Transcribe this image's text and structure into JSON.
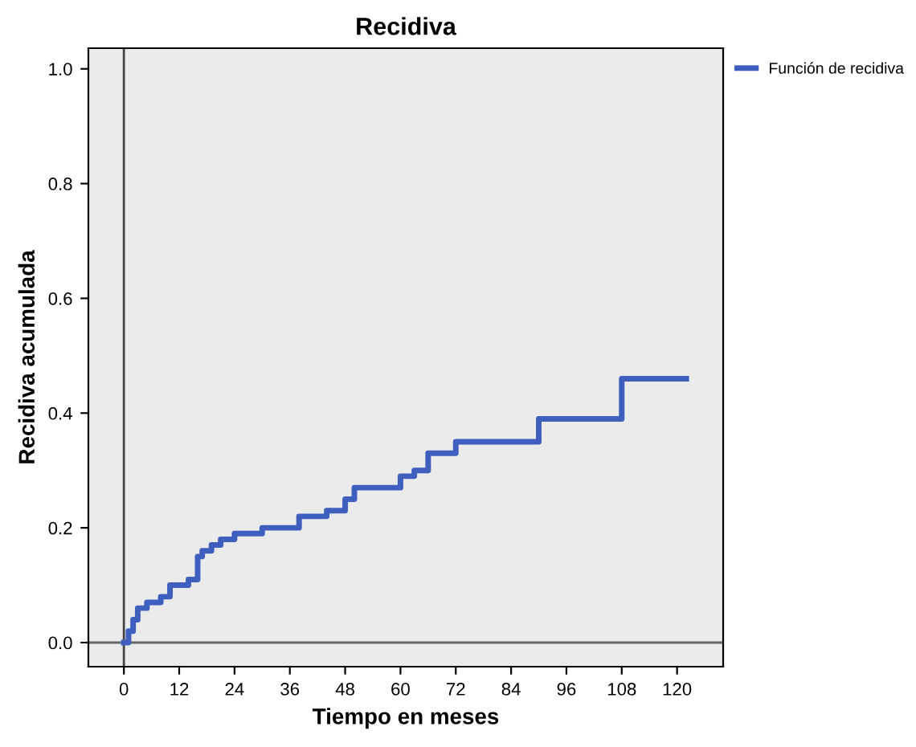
{
  "chart_data": {
    "type": "step",
    "title": "Recidiva",
    "xlabel": "Tiempo en meses",
    "ylabel": "Recidiva acumulada",
    "series": [
      {
        "name": "Función de recidiva",
        "color": "#3f5fbf",
        "x": [
          0,
          1,
          2,
          3,
          5,
          8,
          10,
          14,
          16,
          17,
          19,
          21,
          24,
          30,
          38,
          44,
          48,
          50,
          60,
          63,
          66,
          72,
          90,
          108,
          122
        ],
        "values": [
          0,
          0.02,
          0.04,
          0.06,
          0.07,
          0.08,
          0.1,
          0.11,
          0.15,
          0.16,
          0.17,
          0.18,
          0.19,
          0.2,
          0.22,
          0.23,
          0.25,
          0.27,
          0.29,
          0.3,
          0.33,
          0.35,
          0.39,
          0.46,
          0.46
        ]
      }
    ],
    "xlim": [
      -7.7,
      130
    ],
    "ylim": [
      -0.042,
      1.036
    ],
    "xticks": [
      0,
      12,
      24,
      36,
      48,
      60,
      72,
      84,
      96,
      108,
      120
    ],
    "yticks": [
      {
        "value": 0,
        "label": "0.0"
      },
      {
        "value": 0.2,
        "label": "0.2"
      },
      {
        "value": 0.4,
        "label": "0.4"
      },
      {
        "value": 0.6,
        "label": "0.6"
      },
      {
        "value": 0.8,
        "label": "0.8"
      },
      {
        "value": 1.0,
        "label": "1.0"
      }
    ],
    "ref_lines": [
      {
        "axis": "x",
        "value": 0,
        "color": "#444444"
      },
      {
        "axis": "y",
        "value": 0,
        "color": "#666666"
      }
    ],
    "legend": "top right",
    "grid": false,
    "marker": "none",
    "line_style": "solid"
  }
}
